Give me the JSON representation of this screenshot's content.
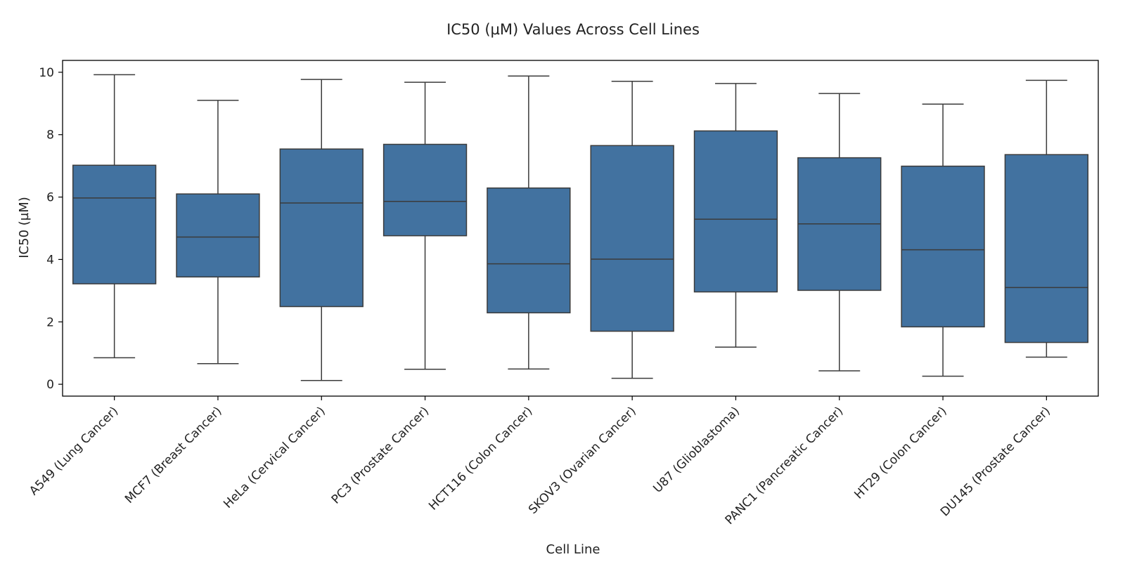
{
  "chart_data": {
    "type": "box",
    "title": "IC50 (µM) Values Across Cell Lines",
    "xlabel": "Cell Line",
    "ylabel": "IC50 (µM)",
    "ylim": [
      -0.38,
      10.38
    ],
    "yticks": [
      0,
      2,
      4,
      6,
      8,
      10
    ],
    "grid": false,
    "box_color": "#4272a0",
    "line_color": "#3b3b3b",
    "categories": [
      "A549 (Lung Cancer)",
      "MCF7 (Breast Cancer)",
      "HeLa (Cervical Cancer)",
      "PC3 (Prostate Cancer)",
      "HCT116 (Colon Cancer)",
      "SKOV3 (Ovarian Cancer)",
      "U87 (Glioblastoma)",
      "PANC1 (Pancreatic Cancer)",
      "HT29 (Colon Cancer)",
      "DU145 (Prostate Cancer)"
    ],
    "boxes": [
      {
        "min": 0.85,
        "q1": 3.22,
        "median": 5.97,
        "q3": 7.02,
        "max": 9.92
      },
      {
        "min": 0.66,
        "q1": 3.44,
        "median": 4.72,
        "q3": 6.1,
        "max": 9.1
      },
      {
        "min": 0.12,
        "q1": 2.49,
        "median": 5.81,
        "q3": 7.54,
        "max": 9.77
      },
      {
        "min": 0.48,
        "q1": 4.76,
        "median": 5.86,
        "q3": 7.69,
        "max": 9.68
      },
      {
        "min": 0.49,
        "q1": 2.29,
        "median": 3.86,
        "q3": 6.29,
        "max": 9.88
      },
      {
        "min": 0.19,
        "q1": 1.7,
        "median": 4.01,
        "q3": 7.65,
        "max": 9.71
      },
      {
        "min": 1.19,
        "q1": 2.96,
        "median": 5.29,
        "q3": 8.12,
        "max": 9.64
      },
      {
        "min": 0.43,
        "q1": 3.01,
        "median": 5.14,
        "q3": 7.26,
        "max": 9.32
      },
      {
        "min": 0.26,
        "q1": 1.84,
        "median": 4.31,
        "q3": 6.99,
        "max": 8.98
      },
      {
        "min": 0.87,
        "q1": 1.34,
        "median": 3.1,
        "q3": 7.36,
        "max": 9.74
      }
    ]
  }
}
